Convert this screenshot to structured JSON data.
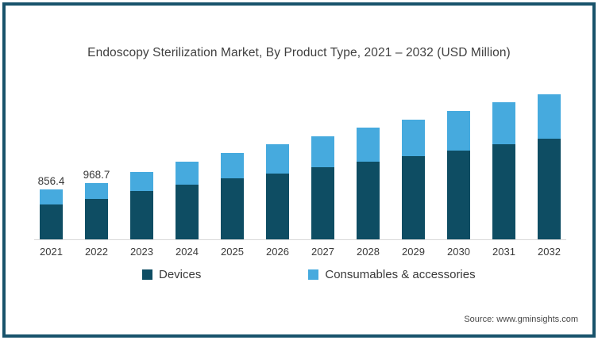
{
  "frame": {
    "border_color": "#18536b"
  },
  "chart_data": {
    "type": "bar",
    "stacked": true,
    "title": "Endoscopy Sterilization Market, By Product Type, 2021 – 2032 (USD Million)",
    "xlabel": "",
    "ylabel": "USD Million",
    "ylim": [
      0,
      2525
    ],
    "grid": false,
    "legend_position": "bottom",
    "axis_line_color": "#d9d9d9",
    "categories": [
      "2021",
      "2022",
      "2023",
      "2024",
      "2025",
      "2026",
      "2027",
      "2028",
      "2029",
      "2030",
      "2031",
      "2032"
    ],
    "series": [
      {
        "name": "Devices",
        "color": "#0e4d63",
        "values": [
          600,
          690,
          840,
          940,
          1050,
          1140,
          1240,
          1335,
          1430,
          1535,
          1635,
          1730
        ]
      },
      {
        "name": "Consumables & accessories",
        "color": "#46aade",
        "values": [
          256.4,
          278.7,
          320,
          400,
          435,
          495,
          530,
          585,
          625,
          680,
          725,
          770
        ]
      }
    ],
    "totals": [
      856.4,
      968.7,
      1160,
      1340,
      1485,
      1635,
      1770,
      1920,
      2055,
      2215,
      2360,
      2500
    ],
    "data_labels": [
      {
        "category": "2021",
        "text": "856.4"
      },
      {
        "category": "2022",
        "text": "968.7"
      }
    ]
  },
  "source": {
    "text": "Source: www.gminsights.com"
  }
}
